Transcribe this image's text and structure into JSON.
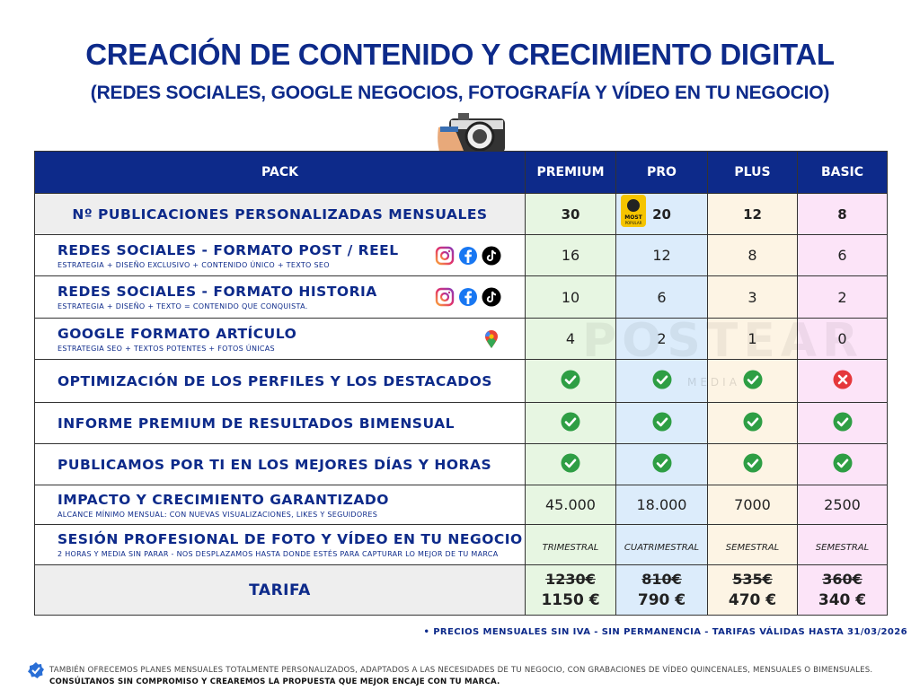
{
  "header": {
    "title": "CREACIÓN DE CONTENIDO Y CRECIMIENTO DIGITAL",
    "subtitle": "(REDES SOCIALES, GOOGLE NEGOCIOS, FOTOGRAFÍA Y VÍDEO EN TU NEGOCIO)"
  },
  "table": {
    "columns": [
      "PACK",
      "PREMIUM",
      "PRO",
      "PLUS",
      "BASIC"
    ],
    "badge": [
      "MOST",
      "POPULAR"
    ],
    "rows": [
      {
        "label": "Nº PUBLICACIONES PERSONALIZADAS MENSUALES",
        "cells": [
          30,
          20,
          12,
          8
        ]
      },
      {
        "label": "REDES SOCIALES - FORMATO POST / REEL",
        "note": "ESTRATEGIA + DISEÑO EXCLUSIVO + CONTENIDO ÚNICO + TEXTO SEO",
        "cells": [
          16,
          12,
          8,
          6
        ]
      },
      {
        "label": "REDES SOCIALES - FORMATO HISTORIA",
        "note": "ESTRATEGIA + DISEÑO + TEXTO = CONTENIDO QUE CONQUISTA.",
        "cells": [
          10,
          6,
          3,
          2
        ]
      },
      {
        "label": "GOOGLE FORMATO ARTÍCULO",
        "note": "ESTRATEGIA SEO + TEXTOS POTENTES + FOTOS ÚNICAS",
        "cells": [
          4,
          2,
          1,
          0
        ]
      },
      {
        "label": "OPTIMIZACIÓN DE LOS PERFILES Y LOS DESTACADOS",
        "cells": [
          true,
          true,
          true,
          false
        ]
      },
      {
        "label": "INFORME PREMIUM DE RESULTADOS BIMENSUAL",
        "cells": [
          true,
          true,
          true,
          true
        ]
      },
      {
        "label": "PUBLICAMOS POR TI EN LOS MEJORES DÍAS Y HORAS",
        "cells": [
          true,
          true,
          true,
          true
        ]
      },
      {
        "label": "IMPACTO Y CRECIMIENTO GARANTIZADO",
        "note": "ALCANCE MÍNIMO MENSUAL: CON NUEVAS VISUALIZACIONES, LIKES Y SEGUIDORES",
        "cells": [
          "45.000",
          "18.000",
          "7000",
          "2500"
        ]
      },
      {
        "label": "SESIÓN PROFESIONAL DE FOTO Y VÍDEO EN TU NEGOCIO",
        "note": "2 HORAS Y MEDIA SIN PARAR - NOS DESPLAZAMOS HASTA DONDE ESTÉS PARA CAPTURAR LO MEJOR DE TU MARCA",
        "cells": [
          "TRIMESTRAL",
          "CUATRIMESTRAL",
          "SEMESTRAL",
          "SEMESTRAL"
        ]
      },
      {
        "label": "TARIFA",
        "old": [
          "1230€",
          "810€",
          "535€",
          "360€"
        ],
        "cells": [
          "1150 €",
          "790 €",
          "470 €",
          "340 €"
        ]
      }
    ]
  },
  "watermark": [
    "POSTEAR",
    "MEDIA"
  ],
  "footnote": "PRECIOS MENSUALES SIN IVA - SIN PERMANENCIA  - TARIFAS VÁLIDAS HASTA 31/03/2026",
  "bottom": [
    "TAMBIÉN OFRECEMOS PLANES MENSUALES TOTALMENTE PERSONALIZADOS, ADAPTADOS A LAS NECESIDADES DE TU NEGOCIO, CON GRABACIONES DE VÍDEO QUINCENALES, MENSUALES O BIMENSUALES.",
    "CONSÚLTANOS SIN COMPROMISO Y CREAREMOS LA PROPUESTA QUE MEJOR ENCAJE CON TU MARCA."
  ]
}
